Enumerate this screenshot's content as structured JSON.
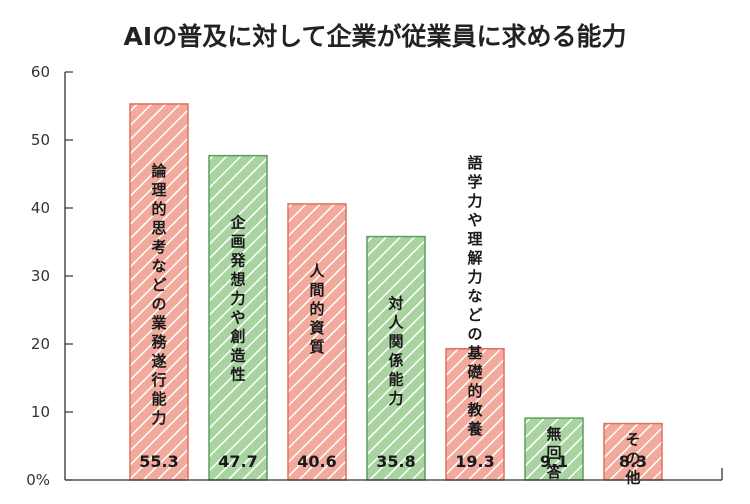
{
  "chart_data": {
    "type": "bar",
    "title": "AIの普及に対して企業が従業員に求める能力",
    "xlabel": "",
    "ylabel": "",
    "ylim": [
      0,
      60
    ],
    "y_ticks": [
      "0%",
      "10",
      "20",
      "30",
      "40",
      "50",
      "60"
    ],
    "grid": false,
    "categories": [
      "論理的思考などの業務遂行能力",
      "企画発想力や創造性",
      "人間的資質",
      "対人関係能力",
      "語学力や理解力などの基礎的教養",
      "無回答",
      "その他"
    ],
    "values": [
      55.3,
      47.7,
      40.6,
      35.8,
      19.3,
      9.1,
      8.3
    ],
    "value_labels": [
      "55.3",
      "47.7",
      "40.6",
      "35.8",
      "19.3",
      "9.1",
      "8.3"
    ],
    "colors": {
      "red_fill": "#f2aa9c",
      "red_edge": "#e07060",
      "green_fill": "#a9d4a2",
      "green_edge": "#5aa05a",
      "axis": "#333333"
    },
    "bar_color_pattern": [
      "red",
      "green",
      "red",
      "green",
      "red",
      "green",
      "red"
    ]
  }
}
